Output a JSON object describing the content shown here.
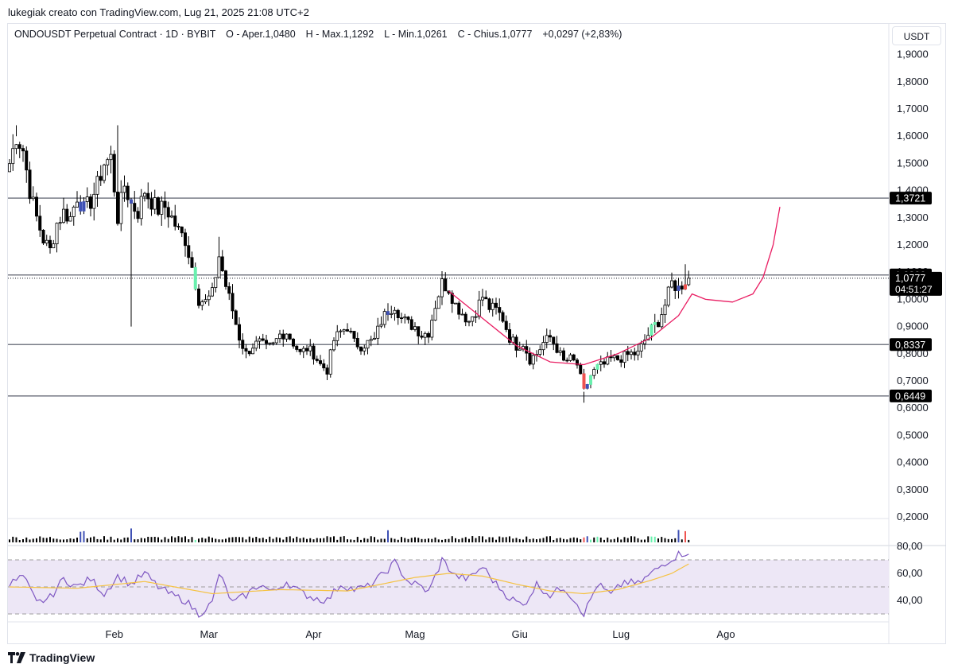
{
  "header": {
    "title": "lukegiak creato con TradingView.com, Lug 21, 2025 21:08 UTC+2"
  },
  "legend": {
    "symbol": "ONDOUSDT Perpetual Contract",
    "interval": "1D",
    "exchange": "BYBIT",
    "open_label": "O",
    "open": "Aper.1,0480",
    "high_label": "H",
    "high": "Max.1,1292",
    "low_label": "L",
    "low": "Min.1,0261",
    "close_label": "C",
    "close": "Chius.1,0777",
    "change": "+0,0297 (+2,83%)"
  },
  "currency_button": "USDT",
  "footer": {
    "brand": "TradingView"
  },
  "colors": {
    "bull": "#ffffff",
    "bear": "#000000",
    "wick": "#000000",
    "highlight_blue": "#3f51b5",
    "highlight_green": "#69f0ae",
    "highlight_red": "#ef5350",
    "rsi": "#7e57c2",
    "rsi_ma": "#f5c242",
    "rsi_band": "#ede7f6",
    "curve": "#e91e63",
    "level": "#787b86"
  },
  "chart_data": {
    "type": "candlestick",
    "price_axis": {
      "ticks": [
        "1,9000",
        "1,8000",
        "1,7000",
        "1,6000",
        "1,5000",
        "1,4000",
        "1,3000",
        "1,2000",
        "1,1000",
        "1,0000",
        "0,9000",
        "0,8000",
        "0,7000",
        "0,6000",
        "0,5000",
        "0,4000",
        "0,3000",
        "0,2000"
      ],
      "range": [
        0.2,
        1.9
      ]
    },
    "time_axis": {
      "labels": [
        {
          "text": "Feb",
          "day": 31
        },
        {
          "text": "Mar",
          "day": 59
        },
        {
          "text": "Apr",
          "day": 90
        },
        {
          "text": "Mag",
          "day": 120
        },
        {
          "text": "Giu",
          "day": 151
        },
        {
          "text": "Lug",
          "day": 181
        },
        {
          "text": "Ago",
          "day": 212
        }
      ],
      "first_day": 0,
      "last_day": 231
    },
    "horizontal_levels": [
      {
        "price": 1.3721,
        "label": "1,3721"
      },
      {
        "price": 1.0896,
        "label": "1,0896"
      },
      {
        "price": 0.8337,
        "label": "0,8337"
      },
      {
        "price": 0.6449,
        "label": "0,6449"
      }
    ],
    "last_price": {
      "price": 1.0777,
      "label": "1,0777",
      "countdown": "04:51:27"
    },
    "anchors": [
      [
        0,
        1.5
      ],
      [
        2,
        1.6
      ],
      [
        4,
        1.55
      ],
      [
        6,
        1.4
      ],
      [
        8,
        1.3
      ],
      [
        10,
        1.22
      ],
      [
        12,
        1.18
      ],
      [
        14,
        1.28
      ],
      [
        16,
        1.32
      ],
      [
        18,
        1.3
      ],
      [
        20,
        1.38
      ],
      [
        22,
        1.33
      ],
      [
        24,
        1.36
      ],
      [
        26,
        1.42
      ],
      [
        28,
        1.5
      ],
      [
        30,
        1.52
      ],
      [
        32,
        1.3
      ],
      [
        34,
        1.42
      ],
      [
        36,
        1.35
      ],
      [
        38,
        1.32
      ],
      [
        40,
        1.4
      ],
      [
        42,
        1.36
      ],
      [
        44,
        1.33
      ],
      [
        46,
        1.34
      ],
      [
        48,
        1.3
      ],
      [
        50,
        1.25
      ],
      [
        52,
        1.22
      ],
      [
        54,
        1.12
      ],
      [
        56,
        1.0
      ],
      [
        58,
        0.99
      ],
      [
        60,
        1.02
      ],
      [
        62,
        1.16
      ],
      [
        64,
        1.05
      ],
      [
        66,
        0.96
      ],
      [
        68,
        0.86
      ],
      [
        70,
        0.8
      ],
      [
        72,
        0.83
      ],
      [
        74,
        0.84
      ],
      [
        76,
        0.82
      ],
      [
        78,
        0.83
      ],
      [
        80,
        0.87
      ],
      [
        82,
        0.88
      ],
      [
        84,
        0.84
      ],
      [
        86,
        0.8
      ],
      [
        88,
        0.82
      ],
      [
        90,
        0.8
      ],
      [
        92,
        0.76
      ],
      [
        94,
        0.74
      ],
      [
        96,
        0.85
      ],
      [
        98,
        0.88
      ],
      [
        100,
        0.9
      ],
      [
        102,
        0.84
      ],
      [
        104,
        0.83
      ],
      [
        106,
        0.84
      ],
      [
        108,
        0.85
      ],
      [
        110,
        0.92
      ],
      [
        112,
        0.96
      ],
      [
        114,
        0.98
      ],
      [
        116,
        0.93
      ],
      [
        118,
        0.91
      ],
      [
        120,
        0.9
      ],
      [
        122,
        0.87
      ],
      [
        124,
        0.88
      ],
      [
        126,
        0.98
      ],
      [
        128,
        1.06
      ],
      [
        130,
        1.04
      ],
      [
        132,
        0.98
      ],
      [
        134,
        0.95
      ],
      [
        136,
        0.92
      ],
      [
        138,
        0.96
      ],
      [
        140,
        1.01
      ],
      [
        142,
        0.97
      ],
      [
        144,
        0.96
      ],
      [
        146,
        0.93
      ],
      [
        148,
        0.86
      ],
      [
        150,
        0.83
      ],
      [
        152,
        0.84
      ],
      [
        154,
        0.78
      ],
      [
        156,
        0.8
      ],
      [
        158,
        0.84
      ],
      [
        160,
        0.86
      ],
      [
        162,
        0.82
      ],
      [
        164,
        0.77
      ],
      [
        166,
        0.78
      ],
      [
        168,
        0.76
      ],
      [
        170,
        0.66
      ],
      [
        172,
        0.72
      ],
      [
        174,
        0.75
      ],
      [
        176,
        0.76
      ],
      [
        178,
        0.78
      ],
      [
        180,
        0.78
      ],
      [
        182,
        0.79
      ],
      [
        184,
        0.8
      ],
      [
        186,
        0.8
      ],
      [
        188,
        0.85
      ],
      [
        190,
        0.89
      ],
      [
        192,
        0.92
      ],
      [
        194,
        0.98
      ],
      [
        196,
        1.06
      ],
      [
        198,
        1.04
      ],
      [
        200,
        1.07
      ],
      [
        201,
        1.0777
      ]
    ],
    "highlights": [
      {
        "day": 21,
        "color": "blue"
      },
      {
        "day": 22,
        "color": "blue"
      },
      {
        "day": 36,
        "color": "blue"
      },
      {
        "day": 55,
        "color": "green"
      },
      {
        "day": 112,
        "color": "blue"
      },
      {
        "day": 170,
        "color": "red"
      },
      {
        "day": 171,
        "color": "blue"
      },
      {
        "day": 172,
        "color": "green"
      },
      {
        "day": 174,
        "color": "green"
      },
      {
        "day": 190,
        "color": "green"
      },
      {
        "day": 191,
        "color": "green"
      },
      {
        "day": 198,
        "color": "blue"
      },
      {
        "day": 200,
        "color": "red"
      }
    ],
    "curve": [
      [
        130,
        1.03
      ],
      [
        140,
        0.93
      ],
      [
        150,
        0.83
      ],
      [
        160,
        0.77
      ],
      [
        170,
        0.76
      ],
      [
        180,
        0.8
      ],
      [
        190,
        0.86
      ],
      [
        198,
        0.94
      ],
      [
        200,
        0.98
      ],
      [
        202,
        1.02
      ],
      [
        206,
        1.0
      ],
      [
        214,
        0.99
      ],
      [
        220,
        1.02
      ],
      [
        223,
        1.08
      ],
      [
        226,
        1.2
      ],
      [
        228,
        1.34
      ]
    ],
    "rsi": {
      "ticks": [
        "80,00",
        "60,00",
        "40,00"
      ],
      "range": [
        25,
        80
      ],
      "upper": 70,
      "middle": 50,
      "lower": 30,
      "anchors": [
        [
          0,
          52
        ],
        [
          4,
          58
        ],
        [
          8,
          38
        ],
        [
          12,
          42
        ],
        [
          16,
          56
        ],
        [
          20,
          50
        ],
        [
          24,
          56
        ],
        [
          28,
          45
        ],
        [
          32,
          58
        ],
        [
          36,
          52
        ],
        [
          40,
          60
        ],
        [
          44,
          50
        ],
        [
          48,
          44
        ],
        [
          52,
          40
        ],
        [
          56,
          30
        ],
        [
          60,
          38
        ],
        [
          62,
          60
        ],
        [
          66,
          38
        ],
        [
          70,
          44
        ],
        [
          74,
          52
        ],
        [
          78,
          46
        ],
        [
          82,
          54
        ],
        [
          86,
          46
        ],
        [
          90,
          42
        ],
        [
          94,
          40
        ],
        [
          98,
          52
        ],
        [
          102,
          48
        ],
        [
          106,
          50
        ],
        [
          110,
          58
        ],
        [
          114,
          68
        ],
        [
          118,
          54
        ],
        [
          122,
          50
        ],
        [
          124,
          46
        ],
        [
          128,
          70
        ],
        [
          132,
          58
        ],
        [
          136,
          56
        ],
        [
          140,
          65
        ],
        [
          144,
          52
        ],
        [
          148,
          42
        ],
        [
          152,
          36
        ],
        [
          156,
          52
        ],
        [
          160,
          44
        ],
        [
          164,
          50
        ],
        [
          168,
          38
        ],
        [
          170,
          30
        ],
        [
          174,
          52
        ],
        [
          178,
          44
        ],
        [
          182,
          54
        ],
        [
          186,
          52
        ],
        [
          190,
          60
        ],
        [
          194,
          68
        ],
        [
          198,
          74
        ],
        [
          201,
          76
        ]
      ],
      "ma_anchors": [
        [
          0,
          50
        ],
        [
          20,
          49
        ],
        [
          40,
          54
        ],
        [
          60,
          45
        ],
        [
          80,
          48
        ],
        [
          100,
          47
        ],
        [
          110,
          52
        ],
        [
          120,
          57
        ],
        [
          130,
          60
        ],
        [
          140,
          58
        ],
        [
          150,
          52
        ],
        [
          160,
          47
        ],
        [
          170,
          45
        ],
        [
          180,
          48
        ],
        [
          190,
          55
        ],
        [
          196,
          60
        ],
        [
          201,
          67
        ]
      ]
    }
  }
}
